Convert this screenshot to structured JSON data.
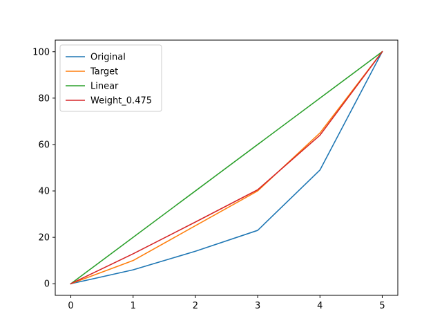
{
  "chart_data": {
    "type": "line",
    "title": "",
    "xlabel": "",
    "ylabel": "",
    "x": [
      0,
      1,
      2,
      3,
      4,
      5
    ],
    "xlim": [
      -0.25,
      5.25
    ],
    "ylim": [
      -5,
      105
    ],
    "xticks": [
      0,
      1,
      2,
      3,
      4,
      5
    ],
    "yticks": [
      0,
      20,
      40,
      60,
      80,
      100
    ],
    "grid": false,
    "legend_position": "top-left",
    "series": [
      {
        "name": "Original",
        "color": "#1f77b4",
        "values": [
          0,
          6,
          14,
          23,
          49,
          100
        ]
      },
      {
        "name": "Target",
        "color": "#ff7f0e",
        "values": [
          0,
          10,
          25,
          40,
          65,
          100
        ]
      },
      {
        "name": "Linear",
        "color": "#2ca02c",
        "values": [
          0,
          20,
          40,
          60,
          80,
          100
        ]
      },
      {
        "name": "Weight_0.475",
        "color": "#d62728",
        "values": [
          0,
          12.9,
          26.6,
          40.5,
          64,
          100
        ]
      }
    ]
  }
}
